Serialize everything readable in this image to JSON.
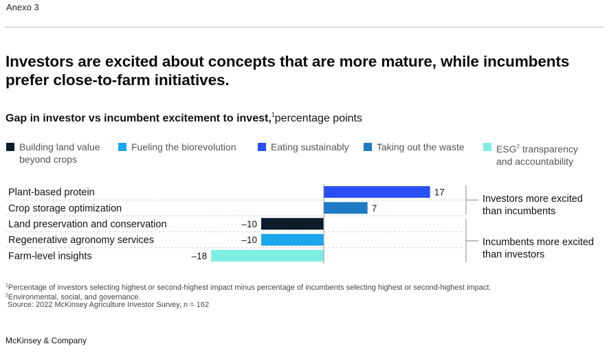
{
  "exhibit_label": "Anexo 3",
  "title": "Investors are excited about concepts that are more mature, while incumbents prefer close-to-farm initiatives.",
  "subtitle": {
    "bold": "Gap in investor vs incumbent excitement to invest,",
    "footnote_marker": "1",
    "rest": "percentage points"
  },
  "legend": [
    {
      "line1": "Building land value",
      "line2": "beyond crops",
      "sup": "",
      "line1_after": "",
      "color": "#0b1b2b"
    },
    {
      "line1": "Fueling the biorevolution",
      "line2": "",
      "sup": "",
      "line1_after": "",
      "color": "#1aa7ec"
    },
    {
      "line1": "Eating sustainably",
      "line2": "",
      "sup": "",
      "line1_after": "",
      "color": "#2a4ff7"
    },
    {
      "line1": "Taking out the waste",
      "line2": "",
      "sup": "",
      "line1_after": "",
      "color": "#1e7ac4"
    },
    {
      "line1": "ESG",
      "sup": "2",
      "line1_after": " transparency",
      "line2": "and accountability",
      "color": "#7eeee3"
    }
  ],
  "chart_data": {
    "type": "bar",
    "orientation": "horizontal",
    "categories": [
      "Plant-based protein",
      "Crop storage optimization",
      "Land preservation and conservation",
      "Regenerative agronomy services",
      "Farm-level insights"
    ],
    "values": [
      17,
      7,
      -10,
      -10,
      -18
    ],
    "value_labels": [
      "17",
      "7",
      "–10",
      "–10",
      "–18"
    ],
    "colors": [
      "#2a4ff7",
      "#1e7ac4",
      "#0b1b2b",
      "#1aa7ec",
      "#7eeee3"
    ],
    "xlim": [
      -18,
      17
    ],
    "grid": false,
    "group_labels": [
      {
        "text_lines": [
          "Investors more excited",
          "than incumbents"
        ],
        "rows": [
          0,
          1
        ]
      },
      {
        "text_lines": [
          "Incumbents more excited",
          "than investors"
        ],
        "rows": [
          2,
          3,
          4
        ]
      }
    ]
  },
  "footnotes": [
    {
      "marker": "1",
      "text": "Percentage of investors selecting highest or second-highest impact minus percentage of incumbents selecting highest or second-highest impact."
    },
    {
      "marker": "2",
      "text": "Environmental, social, and governance."
    },
    {
      "marker": "",
      "text": "Source: 2022 McKinsey Agriculture Investor Survey, n = 162"
    }
  ],
  "brand": "McKinsey & Company"
}
